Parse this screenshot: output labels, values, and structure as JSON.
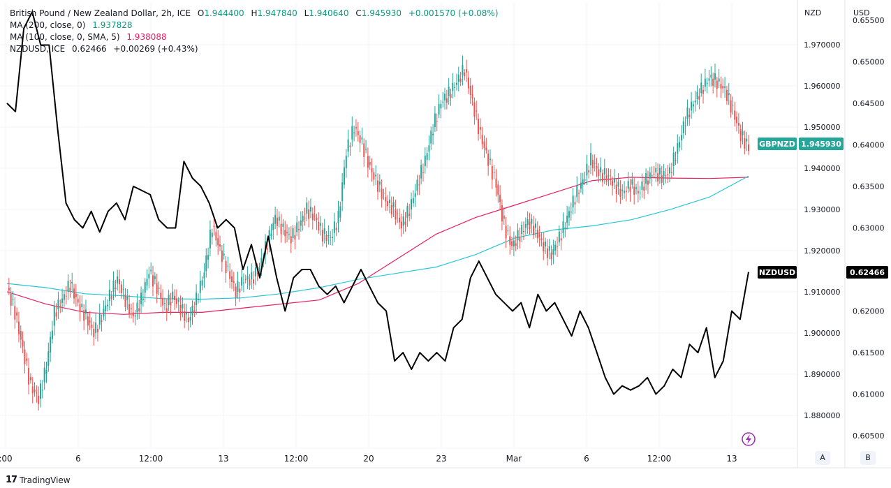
{
  "legend": {
    "symbol_line": "British Pound / New Zealand Dollar, 2h, ICE",
    "o_label": "O",
    "o_value": "1.944400",
    "h_label": "H",
    "h_value": "1.947840",
    "l_label": "L",
    "l_value": "1.940640",
    "c_label": "C",
    "c_value": "1.945930",
    "change": "+0.001570 (+0.08%)",
    "ma200_label": "MA (200, close, 0)",
    "ma200_value": "1.937828",
    "ma100_label": "MA (100, close, 0, SMA, 5)",
    "ma100_value": "1.938088",
    "nzdusd_label": "NZDUSD, ICE",
    "nzdusd_value": "0.62466",
    "nzdusd_change": "+0.00269 (+0.43%)"
  },
  "axis_headers": {
    "left": "NZD",
    "right": "USD"
  },
  "price_badges": {
    "gbpnzd_label": "GBPNZD",
    "gbpnzd_value": "1.945930",
    "nzdusd_label": "NZDUSD",
    "nzdusd_value": "0.62466"
  },
  "scale_buttons": {
    "a": "A",
    "b": "B"
  },
  "branding": {
    "name": "TradingView"
  },
  "colors": {
    "up": "#26a69a",
    "down": "#ef5350",
    "ma200": "#e91e63",
    "ma100": "#26c6da",
    "nzdusd": "#000000"
  },
  "chart_data": {
    "type": "line",
    "title": "British Pound / New Zealand Dollar, 2h, ICE",
    "x_ticks": [
      ":00",
      "6",
      "12:00",
      "13",
      "12:00",
      "20",
      "23",
      "Mar",
      "6",
      "12:00",
      "13"
    ],
    "y_left": {
      "unit": "NZD",
      "ticks": [
        "1.970000",
        "1.960000",
        "1.950000",
        "1.940000",
        "1.930000",
        "1.920000",
        "1.910000",
        "1.900000",
        "1.890000",
        "1.880000"
      ],
      "range": [
        1.872,
        1.98
      ]
    },
    "y_right": {
      "unit": "USD",
      "ticks": [
        "0.65500",
        "0.65000",
        "0.64500",
        "0.64000",
        "0.63500",
        "0.63000",
        "0.62500",
        "0.62000",
        "0.61500",
        "0.61000",
        "0.60500"
      ],
      "range": [
        0.6035,
        0.657
      ]
    },
    "series": [
      {
        "name": "GBPNZD",
        "axis": "left",
        "kind": "candles",
        "close": [
          1.911,
          1.905,
          1.896,
          1.887,
          1.884,
          1.892,
          1.905,
          1.908,
          1.912,
          1.907,
          1.904,
          1.9,
          1.904,
          1.909,
          1.913,
          1.908,
          1.904,
          1.908,
          1.915,
          1.911,
          1.906,
          1.909,
          1.906,
          1.903,
          1.908,
          1.915,
          1.926,
          1.92,
          1.915,
          1.91,
          1.913,
          1.913,
          1.916,
          1.922,
          1.928,
          1.925,
          1.923,
          1.926,
          1.93,
          1.928,
          1.924,
          1.923,
          1.928,
          1.944,
          1.95,
          1.946,
          1.94,
          1.936,
          1.932,
          1.93,
          1.926,
          1.93,
          1.936,
          1.942,
          1.95,
          1.956,
          1.958,
          1.961,
          1.964,
          1.956,
          1.948,
          1.942,
          1.936,
          1.926,
          1.921,
          1.924,
          1.927,
          1.925,
          1.921,
          1.919,
          1.923,
          1.928,
          1.933,
          1.937,
          1.942,
          1.939,
          1.938,
          1.936,
          1.934,
          1.936,
          1.934,
          1.937,
          1.939,
          1.938,
          1.939,
          1.945,
          1.952,
          1.956,
          1.959,
          1.962,
          1.961,
          1.959,
          1.954,
          1.948,
          1.945
        ],
        "high_extreme": 1.9695,
        "low_extreme": 1.88
      },
      {
        "name": "MA (200, close, 0)",
        "axis": "left",
        "kind": "line",
        "values": [
          1.91,
          1.907,
          1.905,
          1.9045,
          1.905,
          1.905,
          1.906,
          1.907,
          1.908,
          1.912,
          1.918,
          1.924,
          1.928,
          1.931,
          1.934,
          1.937,
          1.9378,
          1.9376,
          1.9375,
          1.9378
        ]
      },
      {
        "name": "MA (100, close, 0, SMA, 5)",
        "axis": "left",
        "kind": "line",
        "values": [
          1.912,
          1.911,
          1.9095,
          1.909,
          1.9083,
          1.9082,
          1.9085,
          1.9095,
          1.911,
          1.913,
          1.9145,
          1.916,
          1.919,
          1.923,
          1.925,
          1.926,
          1.9275,
          1.93,
          1.933,
          1.9381
        ]
      },
      {
        "name": "NZDUSD",
        "axis": "right",
        "kind": "line",
        "values": [
          0.645,
          0.644,
          0.654,
          0.656,
          0.652,
          0.652,
          0.642,
          0.633,
          0.631,
          0.63,
          0.632,
          0.6295,
          0.632,
          0.633,
          0.631,
          0.635,
          0.6345,
          0.634,
          0.631,
          0.63,
          0.63,
          0.638,
          0.636,
          0.635,
          0.633,
          0.63,
          0.631,
          0.63,
          0.625,
          0.628,
          0.624,
          0.629,
          0.624,
          0.62,
          0.624,
          0.625,
          0.625,
          0.623,
          0.622,
          0.623,
          0.621,
          0.623,
          0.625,
          0.623,
          0.621,
          0.62,
          0.614,
          0.615,
          0.613,
          0.615,
          0.614,
          0.615,
          0.614,
          0.618,
          0.619,
          0.624,
          0.626,
          0.624,
          0.622,
          0.621,
          0.62,
          0.621,
          0.618,
          0.622,
          0.62,
          0.621,
          0.619,
          0.617,
          0.62,
          0.618,
          0.615,
          0.612,
          0.61,
          0.611,
          0.6105,
          0.611,
          0.612,
          0.61,
          0.611,
          0.613,
          0.612,
          0.616,
          0.615,
          0.618,
          0.612,
          0.614,
          0.62,
          0.619,
          0.6247
        ]
      }
    ],
    "grid": true,
    "legend_position": "top-left"
  }
}
